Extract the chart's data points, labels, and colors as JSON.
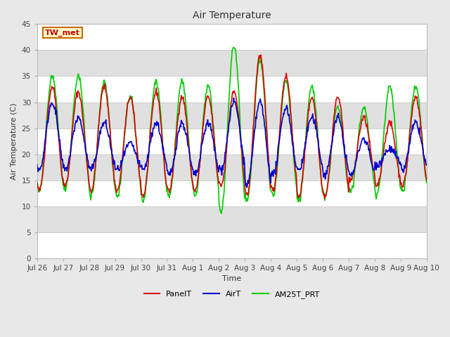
{
  "title": "Air Temperature",
  "xlabel": "Time",
  "ylabel": "Air Temperature (C)",
  "ylim": [
    0,
    45
  ],
  "yticks": [
    0,
    5,
    10,
    15,
    20,
    25,
    30,
    35,
    40,
    45
  ],
  "bg_color": "#e8e8e8",
  "plot_bg_white": "#ffffff",
  "plot_bg_gray": "#e0e0e0",
  "grid_color": "#cccccc",
  "annotation_text": "TW_met",
  "annotation_box_color": "#ffffcc",
  "annotation_border_color": "#cc6600",
  "annotation_text_color": "#cc0000",
  "line_colors": {
    "PanelT": "#dd0000",
    "AirT": "#0000cc",
    "AM25T_PRT": "#00cc00"
  },
  "line_width": 1.2,
  "xtick_labels": [
    "Jul 26",
    "Jul 27",
    "Jul 28",
    "Jul 29",
    "Jul 30",
    "Jul 31",
    "Aug 1",
    "Aug 2",
    "Aug 3",
    "Aug 4",
    "Aug 5",
    "Aug 6",
    "Aug 7",
    "Aug 8",
    "Aug 9",
    "Aug 10"
  ],
  "n_days": 15,
  "n_pts_per_day": 48,
  "seed": 42,
  "day_peaks_panelT": [
    33,
    32,
    33,
    31,
    32,
    31,
    31,
    32,
    39,
    35,
    31,
    31,
    27,
    26,
    31
  ],
  "day_troughs_panelT": [
    13,
    14,
    13,
    13,
    12,
    13,
    13,
    14,
    12,
    13,
    12,
    12,
    15,
    14,
    14
  ],
  "day_peaks_airT": [
    30,
    27,
    26,
    22,
    26,
    26,
    26,
    30,
    30,
    29,
    27,
    27,
    23,
    21,
    26
  ],
  "day_troughs_airT": [
    17,
    17,
    17,
    17,
    17,
    16,
    16,
    17,
    14,
    16,
    17,
    16,
    16,
    18,
    17
  ],
  "day_peaks_am25": [
    35,
    35,
    34,
    31,
    34,
    34,
    33,
    41,
    38,
    34,
    33,
    29,
    29,
    33,
    33
  ],
  "day_troughs_am25": [
    13,
    13,
    12,
    12,
    11,
    12,
    12,
    9,
    11,
    12,
    11,
    12,
    13,
    12,
    13
  ]
}
